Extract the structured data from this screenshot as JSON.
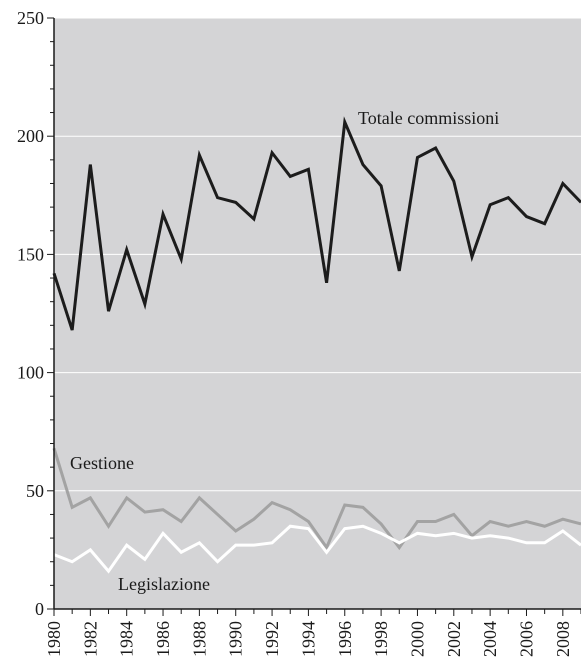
{
  "chart_data": {
    "type": "line",
    "title": "",
    "xlabel": "",
    "ylabel": "",
    "ylim": [
      0,
      250
    ],
    "yticks": [
      0,
      50,
      100,
      150,
      200,
      250
    ],
    "xlim": [
      1980,
      2009
    ],
    "x": [
      1980,
      1981,
      1982,
      1983,
      1984,
      1985,
      1986,
      1987,
      1988,
      1989,
      1990,
      1991,
      1992,
      1993,
      1994,
      1995,
      1996,
      1997,
      1998,
      1999,
      2000,
      2001,
      2002,
      2003,
      2004,
      2005,
      2006,
      2007,
      2008,
      2009
    ],
    "xtick_labels": [
      "1980",
      "1982",
      "1984",
      "1986",
      "1988",
      "1990",
      "1992",
      "1994",
      "1996",
      "1998",
      "2000",
      "2002",
      "2004",
      "2006",
      "2008"
    ],
    "grid": "horizontal",
    "background": "#d4d4d6",
    "series": [
      {
        "name": "Totale commissioni",
        "color": "#1c1c1c",
        "values": [
          142,
          118,
          188,
          126,
          152,
          129,
          167,
          148,
          192,
          174,
          172,
          165,
          193,
          183,
          186,
          138,
          206,
          188,
          179,
          143,
          191,
          195,
          181,
          149,
          171,
          174,
          166,
          163,
          180,
          172
        ]
      },
      {
        "name": "Gestione",
        "color": "#a3a3a3",
        "values": [
          68,
          43,
          47,
          35,
          47,
          41,
          42,
          37,
          47,
          40,
          33,
          38,
          45,
          42,
          37,
          26,
          44,
          43,
          36,
          26,
          37,
          37,
          40,
          31,
          37,
          35,
          37,
          35,
          38,
          36
        ]
      },
      {
        "name": "Legislazione",
        "color": "#ffffff",
        "values": [
          23,
          20,
          25,
          16,
          27,
          21,
          32,
          24,
          28,
          20,
          27,
          27,
          28,
          35,
          34,
          24,
          34,
          35,
          32,
          28,
          32,
          31,
          32,
          30,
          31,
          30,
          28,
          28,
          33,
          27
        ]
      }
    ]
  }
}
